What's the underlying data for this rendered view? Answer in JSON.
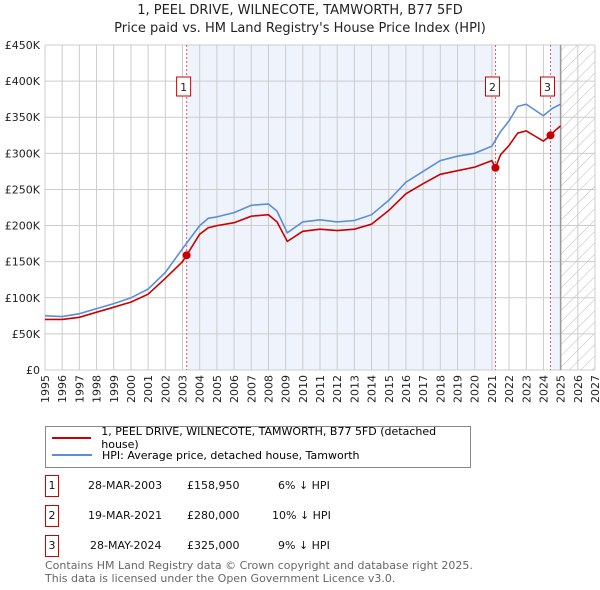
{
  "chart_data": {
    "type": "line",
    "title": "1, PEEL DRIVE, WILNECOTE, TAMWORTH, B77 5FD",
    "subtitle": "Price paid vs. HM Land Registry's House Price Index (HPI)",
    "xlim": [
      1995,
      2027
    ],
    "ylim": [
      0,
      450000
    ],
    "x_ticks": [
      "1995",
      "1996",
      "1997",
      "1998",
      "1999",
      "2000",
      "2001",
      "2002",
      "2003",
      "2004",
      "2005",
      "2006",
      "2007",
      "2008",
      "2009",
      "2010",
      "2011",
      "2012",
      "2013",
      "2014",
      "2015",
      "2016",
      "2017",
      "2018",
      "2019",
      "2020",
      "2021",
      "2022",
      "2023",
      "2024",
      "2025",
      "2026",
      "2027"
    ],
    "y_ticks": [
      {
        "v": 0,
        "label": "£0"
      },
      {
        "v": 50000,
        "label": "£50K"
      },
      {
        "v": 100000,
        "label": "£100K"
      },
      {
        "v": 150000,
        "label": "£150K"
      },
      {
        "v": 200000,
        "label": "£200K"
      },
      {
        "v": 250000,
        "label": "£250K"
      },
      {
        "v": 300000,
        "label": "£300K"
      },
      {
        "v": 350000,
        "label": "£350K"
      },
      {
        "v": 400000,
        "label": "£400K"
      },
      {
        "v": 450000,
        "label": "£450K"
      }
    ],
    "forecast_from": 2025,
    "series": [
      {
        "name": "1, PEEL DRIVE, WILNECOTE, TAMWORTH, B77 5FD (detached house)",
        "color": "#cc0000",
        "x": [
          1995,
          1996,
          1997,
          1998,
          1999,
          2000,
          2001,
          2002,
          2003,
          2003.24,
          2004,
          2004.5,
          2005,
          2006,
          2007,
          2008,
          2008.5,
          2009.1,
          2010,
          2011,
          2012,
          2013,
          2014,
          2015,
          2016,
          2017,
          2018,
          2019,
          2020,
          2021,
          2021.21,
          2021.5,
          2022,
          2022.5,
          2023,
          2023.5,
          2024,
          2024.41,
          2024.7,
          2025
        ],
        "y": [
          70000,
          70000,
          73000,
          80000,
          87000,
          94000,
          105000,
          127000,
          150000,
          158950,
          188000,
          197000,
          200000,
          204000,
          213000,
          215000,
          205000,
          178000,
          192000,
          195000,
          193000,
          195000,
          202000,
          221000,
          244000,
          258000,
          271000,
          276000,
          281000,
          290000,
          280000,
          298000,
          311000,
          328000,
          331000,
          324000,
          317000,
          325000,
          332000,
          338000
        ]
      },
      {
        "name": "HPI: Average price, detached house, Tamworth",
        "color": "#5b8ed6",
        "x": [
          1995,
          1996,
          1997,
          1998,
          1999,
          2000,
          2001,
          2002,
          2003,
          2004,
          2004.5,
          2005,
          2006,
          2007,
          2008,
          2008.5,
          2009.1,
          2010,
          2011,
          2012,
          2013,
          2014,
          2015,
          2016,
          2017,
          2018,
          2019,
          2020,
          2021,
          2021.5,
          2022,
          2022.5,
          2023,
          2023.5,
          2024,
          2024.5,
          2025
        ],
        "y": [
          75000,
          74000,
          78000,
          85000,
          92000,
          100000,
          112000,
          135000,
          168000,
          200000,
          210000,
          212000,
          218000,
          228000,
          230000,
          220000,
          190000,
          205000,
          208000,
          205000,
          207000,
          215000,
          235000,
          260000,
          275000,
          290000,
          296000,
          300000,
          310000,
          330000,
          345000,
          365000,
          368000,
          360000,
          352000,
          362000,
          368000
        ]
      }
    ],
    "sales": [
      {
        "n": "1",
        "x": 2003.24,
        "y": 158950
      },
      {
        "n": "2",
        "x": 2021.21,
        "y": 280000
      },
      {
        "n": "3",
        "x": 2024.41,
        "y": 325000
      }
    ]
  },
  "legend": [
    "1, PEEL DRIVE, WILNECOTE, TAMWORTH, B77 5FD (detached house)",
    "HPI: Average price, detached house, Tamworth"
  ],
  "transactions": [
    {
      "n": "1",
      "date": "28-MAR-2003",
      "price": "£158,950",
      "hpi": "6% ↓ HPI"
    },
    {
      "n": "2",
      "date": "19-MAR-2021",
      "price": "£280,000",
      "hpi": "10% ↓ HPI"
    },
    {
      "n": "3",
      "date": "28-MAY-2024",
      "price": "£325,000",
      "hpi": "9% ↓ HPI"
    }
  ],
  "footer": [
    "Contains HM Land Registry data © Crown copyright and database right 2025.",
    "This data is licensed under the Open Government Licence v3.0."
  ]
}
